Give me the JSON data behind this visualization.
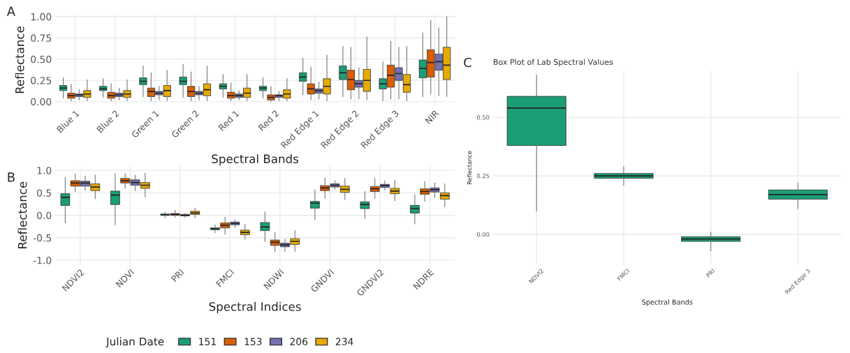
{
  "chart_data": [
    {
      "type": "box",
      "annotations": [
        "A"
      ],
      "xlabel": "Spectral Bands",
      "ylabel": "Reflectance",
      "ylim": [
        -0.05,
        1.03
      ],
      "yticks": [
        {
          "value": 0,
          "label": "0.00"
        },
        {
          "value": 0.25,
          "label": "0.25"
        },
        {
          "value": 0.5,
          "label": "0.50"
        },
        {
          "value": 0.75,
          "label": "0.75"
        },
        {
          "value": 1,
          "label": "1.00"
        }
      ],
      "grid": true,
      "legend": "bottom",
      "categories": [
        "Blue 1",
        "Blue 2",
        "Green 1",
        "Green 2",
        "Red 1",
        "Red 2",
        "Red Edge 1",
        "Red Edge 2",
        "Red Edge 3",
        "NIR"
      ],
      "series": [
        {
          "name": "151",
          "color": "#1b9e77",
          "boxes": [
            {
              "low": 0.04,
              "q1": 0.13,
              "median": 0.16,
              "q3": 0.19,
              "high": 0.28
            },
            {
              "low": 0.05,
              "q1": 0.13,
              "median": 0.15,
              "q3": 0.18,
              "high": 0.27
            },
            {
              "low": 0.06,
              "q1": 0.2,
              "median": 0.24,
              "q3": 0.28,
              "high": 0.42
            },
            {
              "low": 0.05,
              "q1": 0.2,
              "median": 0.24,
              "q3": 0.29,
              "high": 0.44
            },
            {
              "low": 0.05,
              "q1": 0.15,
              "median": 0.18,
              "q3": 0.21,
              "high": 0.32
            },
            {
              "low": 0.04,
              "q1": 0.13,
              "median": 0.16,
              "q3": 0.18,
              "high": 0.28
            },
            {
              "low": 0.08,
              "q1": 0.24,
              "median": 0.29,
              "q3": 0.34,
              "high": 0.51
            },
            {
              "low": 0.06,
              "q1": 0.26,
              "median": 0.34,
              "q3": 0.42,
              "high": 0.65
            },
            {
              "low": 0.01,
              "q1": 0.15,
              "median": 0.21,
              "q3": 0.27,
              "high": 0.47
            },
            {
              "low": 0.06,
              "q1": 0.28,
              "median": 0.39,
              "q3": 0.49,
              "high": 0.81
            }
          ]
        },
        {
          "name": "153",
          "color": "#d95f02",
          "boxes": [
            {
              "low": 0.01,
              "q1": 0.04,
              "median": 0.07,
              "q3": 0.1,
              "high": 0.2
            },
            {
              "low": 0.01,
              "q1": 0.04,
              "median": 0.07,
              "q3": 0.11,
              "high": 0.21
            },
            {
              "low": 0.01,
              "q1": 0.06,
              "median": 0.12,
              "q3": 0.16,
              "high": 0.34
            },
            {
              "low": 0.01,
              "q1": 0.06,
              "median": 0.12,
              "q3": 0.18,
              "high": 0.35
            },
            {
              "low": 0.01,
              "q1": 0.04,
              "median": 0.07,
              "q3": 0.11,
              "high": 0.22
            },
            {
              "low": 0.0,
              "q1": 0.02,
              "median": 0.05,
              "q3": 0.08,
              "high": 0.18
            },
            {
              "low": 0.02,
              "q1": 0.09,
              "median": 0.15,
              "q3": 0.21,
              "high": 0.41
            },
            {
              "low": 0.03,
              "q1": 0.14,
              "median": 0.26,
              "q3": 0.37,
              "high": 0.64
            },
            {
              "low": 0.03,
              "q1": 0.17,
              "median": 0.31,
              "q3": 0.43,
              "high": 0.71
            },
            {
              "low": 0.09,
              "q1": 0.29,
              "median": 0.46,
              "q3": 0.61,
              "high": 0.96
            }
          ]
        },
        {
          "name": "206",
          "color": "#7570b3",
          "boxes": [
            {
              "low": 0.02,
              "q1": 0.06,
              "median": 0.08,
              "q3": 0.09,
              "high": 0.14
            },
            {
              "low": 0.02,
              "q1": 0.06,
              "median": 0.08,
              "q3": 0.1,
              "high": 0.16
            },
            {
              "low": 0.02,
              "q1": 0.08,
              "median": 0.1,
              "q3": 0.12,
              "high": 0.18
            },
            {
              "low": 0.02,
              "q1": 0.08,
              "median": 0.1,
              "q3": 0.12,
              "high": 0.18
            },
            {
              "low": 0.02,
              "q1": 0.05,
              "median": 0.07,
              "q3": 0.09,
              "high": 0.13
            },
            {
              "low": 0.01,
              "q1": 0.05,
              "median": 0.07,
              "q3": 0.08,
              "high": 0.12
            },
            {
              "low": 0.03,
              "q1": 0.1,
              "median": 0.13,
              "q3": 0.15,
              "high": 0.23
            },
            {
              "low": 0.03,
              "q1": 0.17,
              "median": 0.21,
              "q3": 0.25,
              "high": 0.4
            },
            {
              "low": 0.03,
              "q1": 0.25,
              "median": 0.33,
              "q3": 0.4,
              "high": 0.64
            },
            {
              "low": 0.07,
              "q1": 0.37,
              "median": 0.47,
              "q3": 0.56,
              "high": 0.87
            }
          ]
        },
        {
          "name": "234",
          "color": "#e6ab02",
          "boxes": [
            {
              "low": 0.01,
              "q1": 0.05,
              "median": 0.09,
              "q3": 0.13,
              "high": 0.26
            },
            {
              "low": 0.01,
              "q1": 0.05,
              "median": 0.09,
              "q3": 0.13,
              "high": 0.26
            },
            {
              "low": 0.01,
              "q1": 0.06,
              "median": 0.13,
              "q3": 0.19,
              "high": 0.37
            },
            {
              "low": 0.01,
              "q1": 0.07,
              "median": 0.14,
              "q3": 0.21,
              "high": 0.42
            },
            {
              "low": 0.01,
              "q1": 0.05,
              "median": 0.1,
              "q3": 0.16,
              "high": 0.32
            },
            {
              "low": 0.01,
              "q1": 0.04,
              "median": 0.09,
              "q3": 0.14,
              "high": 0.27
            },
            {
              "low": 0.01,
              "q1": 0.09,
              "median": 0.18,
              "q3": 0.27,
              "high": 0.55
            },
            {
              "low": 0.02,
              "q1": 0.12,
              "median": 0.25,
              "q3": 0.38,
              "high": 0.76
            },
            {
              "low": 0.01,
              "q1": 0.11,
              "median": 0.2,
              "q3": 0.32,
              "high": 0.65
            },
            {
              "low": 0.06,
              "q1": 0.26,
              "median": 0.43,
              "q3": 0.64,
              "high": 1.0
            }
          ]
        }
      ]
    },
    {
      "type": "box",
      "annotations": [
        "B"
      ],
      "xlabel": "Spectral Indices",
      "ylabel": "Reflectance",
      "ylim": [
        -1.1,
        1.1
      ],
      "yticks": [
        {
          "value": -1,
          "label": "-1.0"
        },
        {
          "value": -0.5,
          "label": "-0.5"
        },
        {
          "value": 0,
          "label": "0.0"
        },
        {
          "value": 0.5,
          "label": "0.5"
        },
        {
          "value": 1,
          "label": "1.0"
        }
      ],
      "grid": true,
      "legend": "bottom",
      "legend_title": "Julian Date",
      "categories": [
        "NDVI2",
        "NDVI",
        "PRI",
        "FMCI",
        "NDWI",
        "GNDVI",
        "GNDVI2",
        "NDRE"
      ],
      "series": [
        {
          "name": "151",
          "color": "#1b9e77",
          "boxes": [
            {
              "low": -0.17,
              "q1": 0.22,
              "median": 0.4,
              "q3": 0.48,
              "high": 0.84
            },
            {
              "low": -0.21,
              "q1": 0.24,
              "median": 0.45,
              "q3": 0.54,
              "high": 0.93
            },
            {
              "low": -0.05,
              "q1": 0.0,
              "median": 0.01,
              "q3": 0.03,
              "high": 0.07
            },
            {
              "low": -0.39,
              "q1": -0.32,
              "median": -0.3,
              "q3": -0.28,
              "high": -0.21
            },
            {
              "low": -0.58,
              "q1": -0.34,
              "median": -0.26,
              "q3": -0.16,
              "high": 0.08
            },
            {
              "low": -0.09,
              "q1": 0.16,
              "median": 0.27,
              "q3": 0.31,
              "high": 0.57
            },
            {
              "low": -0.07,
              "q1": 0.15,
              "median": 0.24,
              "q3": 0.3,
              "high": 0.53
            },
            {
              "low": -0.19,
              "q1": 0.05,
              "median": 0.15,
              "q3": 0.22,
              "high": 0.46
            }
          ]
        },
        {
          "name": "153",
          "color": "#d95f02",
          "boxes": [
            {
              "low": 0.53,
              "q1": 0.65,
              "median": 0.72,
              "q3": 0.77,
              "high": 0.92
            },
            {
              "low": 0.6,
              "q1": 0.72,
              "median": 0.77,
              "q3": 0.82,
              "high": 0.93
            },
            {
              "low": -0.04,
              "q1": 0.0,
              "median": 0.02,
              "q3": 0.04,
              "high": 0.11
            },
            {
              "low": -0.42,
              "q1": -0.28,
              "median": -0.22,
              "q3": -0.17,
              "high": -0.04
            },
            {
              "low": -0.8,
              "q1": -0.67,
              "median": -0.6,
              "q3": -0.55,
              "high": -0.38
            },
            {
              "low": 0.38,
              "q1": 0.55,
              "median": 0.61,
              "q3": 0.66,
              "high": 0.83
            },
            {
              "low": 0.38,
              "q1": 0.53,
              "median": 0.59,
              "q3": 0.64,
              "high": 0.82
            },
            {
              "low": 0.31,
              "q1": 0.47,
              "median": 0.53,
              "q3": 0.59,
              "high": 0.76
            }
          ]
        },
        {
          "name": "206",
          "color": "#7570b3",
          "boxes": [
            {
              "low": 0.56,
              "q1": 0.65,
              "median": 0.72,
              "q3": 0.76,
              "high": 0.88
            },
            {
              "low": 0.55,
              "q1": 0.67,
              "median": 0.73,
              "q3": 0.79,
              "high": 0.89
            },
            {
              "low": -0.05,
              "q1": -0.01,
              "median": 0.0,
              "q3": 0.02,
              "high": 0.05
            },
            {
              "low": -0.27,
              "q1": -0.21,
              "median": -0.18,
              "q3": -0.15,
              "high": -0.1
            },
            {
              "low": -0.8,
              "q1": -0.7,
              "median": -0.66,
              "q3": -0.62,
              "high": -0.53
            },
            {
              "low": 0.58,
              "q1": 0.63,
              "median": 0.67,
              "q3": 0.7,
              "high": 0.77
            },
            {
              "low": 0.56,
              "q1": 0.62,
              "median": 0.66,
              "q3": 0.69,
              "high": 0.77
            },
            {
              "low": 0.4,
              "q1": 0.52,
              "median": 0.57,
              "q3": 0.61,
              "high": 0.72
            }
          ]
        },
        {
          "name": "234",
          "color": "#e6ab02",
          "boxes": [
            {
              "low": 0.37,
              "q1": 0.55,
              "median": 0.63,
              "q3": 0.7,
              "high": 0.9
            },
            {
              "low": 0.41,
              "q1": 0.6,
              "median": 0.67,
              "q3": 0.73,
              "high": 0.94
            },
            {
              "low": -0.05,
              "q1": 0.02,
              "median": 0.05,
              "q3": 0.09,
              "high": 0.16
            },
            {
              "low": -0.53,
              "q1": -0.43,
              "median": -0.38,
              "q3": -0.33,
              "high": -0.2
            },
            {
              "low": -0.8,
              "q1": -0.65,
              "median": -0.58,
              "q3": -0.52,
              "high": -0.34
            },
            {
              "low": 0.35,
              "q1": 0.51,
              "median": 0.58,
              "q3": 0.65,
              "high": 0.82
            },
            {
              "low": 0.32,
              "q1": 0.48,
              "median": 0.54,
              "q3": 0.6,
              "high": 0.78
            },
            {
              "low": 0.19,
              "q1": 0.36,
              "median": 0.44,
              "q3": 0.5,
              "high": 0.7
            }
          ]
        }
      ]
    },
    {
      "type": "box",
      "annotations": [
        "C"
      ],
      "title": "Box Plot of Lab Spectral Values",
      "xlabel": "Spectral Bands",
      "ylabel": "Reflectance",
      "ylim": [
        -0.13,
        0.7
      ],
      "yticks": [
        {
          "value": 0,
          "label": "0.00"
        },
        {
          "value": 0.25,
          "label": "0.25"
        },
        {
          "value": 0.5,
          "label": "0.50"
        }
      ],
      "grid": true,
      "categories": [
        "NDVI2",
        "FMCI",
        "PRI",
        "Red Edge 3"
      ],
      "series": [
        {
          "color": "#1b9e77",
          "boxes": [
            {
              "low": 0.1,
              "q1": 0.38,
              "median": 0.54,
              "q3": 0.59,
              "high": 0.68
            },
            {
              "low": 0.21,
              "q1": 0.24,
              "median": 0.25,
              "q3": 0.26,
              "high": 0.29
            },
            {
              "low": -0.07,
              "q1": -0.03,
              "median": -0.02,
              "q3": -0.01,
              "high": 0.01
            },
            {
              "low": 0.11,
              "q1": 0.15,
              "median": 0.17,
              "q3": 0.19,
              "high": 0.22
            }
          ]
        }
      ]
    }
  ]
}
